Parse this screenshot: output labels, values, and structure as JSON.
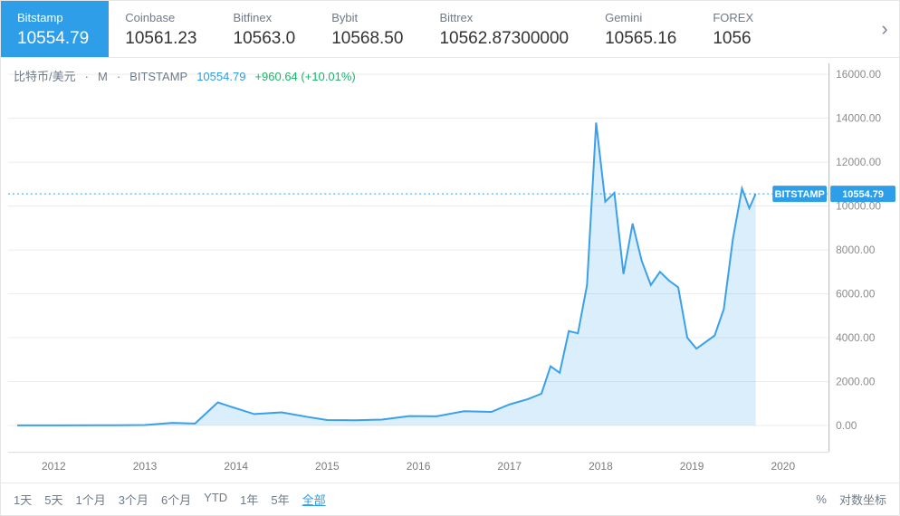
{
  "tabs": {
    "items": [
      {
        "name": "Bitstamp",
        "value": "10554.79",
        "active": true
      },
      {
        "name": "Coinbase",
        "value": "10561.23",
        "active": false
      },
      {
        "name": "Bitfinex",
        "value": "10563.0",
        "active": false
      },
      {
        "name": "Bybit",
        "value": "10568.50",
        "active": false
      },
      {
        "name": "Bittrex",
        "value": "10562.87300000",
        "active": false
      },
      {
        "name": "Gemini",
        "value": "10565.16",
        "active": false
      },
      {
        "name": "FOREX",
        "value": "1056",
        "active": false,
        "cut": true
      }
    ],
    "next_glyph": "›"
  },
  "legend": {
    "pair": "比特币/美元",
    "interval": "M",
    "source": "BITSTAMP",
    "price": "10554.79",
    "change": "+960.64 (+10.01%)"
  },
  "chart": {
    "type": "area",
    "line_color": "#3aa0ea",
    "area_color": "#3aa0ea",
    "background": "#ffffff",
    "grid_color": "#ececec",
    "axis_color": "#b8b8b8",
    "ref_line_color": "#2e9ee8",
    "xlim": [
      2011.5,
      2020.5
    ],
    "ylim": [
      -1200,
      16500
    ],
    "yticks": [
      0,
      2000,
      4000,
      6000,
      8000,
      10000,
      12000,
      14000,
      16000
    ],
    "ytick_labels": [
      "0.00",
      "2000.00",
      "4000.00",
      "6000.00",
      "8000.00",
      "10000.00",
      "12000.00",
      "14000.00",
      "16000.00"
    ],
    "xticks": [
      2012,
      2013,
      2014,
      2015,
      2016,
      2017,
      2018,
      2019,
      2020
    ],
    "xtick_labels": [
      "2012",
      "2013",
      "2014",
      "2015",
      "2016",
      "2017",
      "2018",
      "2019",
      "2020"
    ],
    "reference_y": 10554.79,
    "price_tag": {
      "source": "BITSTAMP",
      "value": "10554.79",
      "bg": "#2e9ee8"
    },
    "series": [
      {
        "x": 2011.6,
        "y": 5
      },
      {
        "x": 2012.0,
        "y": 6
      },
      {
        "x": 2012.5,
        "y": 10
      },
      {
        "x": 2013.0,
        "y": 20
      },
      {
        "x": 2013.3,
        "y": 120
      },
      {
        "x": 2013.55,
        "y": 90
      },
      {
        "x": 2013.8,
        "y": 1050
      },
      {
        "x": 2014.0,
        "y": 780
      },
      {
        "x": 2014.2,
        "y": 520
      },
      {
        "x": 2014.5,
        "y": 600
      },
      {
        "x": 2014.8,
        "y": 380
      },
      {
        "x": 2015.0,
        "y": 250
      },
      {
        "x": 2015.3,
        "y": 240
      },
      {
        "x": 2015.6,
        "y": 270
      },
      {
        "x": 2015.9,
        "y": 430
      },
      {
        "x": 2016.2,
        "y": 420
      },
      {
        "x": 2016.5,
        "y": 650
      },
      {
        "x": 2016.8,
        "y": 620
      },
      {
        "x": 2017.0,
        "y": 960
      },
      {
        "x": 2017.2,
        "y": 1200
      },
      {
        "x": 2017.35,
        "y": 1450
      },
      {
        "x": 2017.45,
        "y": 2700
      },
      {
        "x": 2017.55,
        "y": 2400
      },
      {
        "x": 2017.65,
        "y": 4300
      },
      {
        "x": 2017.75,
        "y": 4200
      },
      {
        "x": 2017.85,
        "y": 6400
      },
      {
        "x": 2017.95,
        "y": 13800
      },
      {
        "x": 2018.05,
        "y": 10200
      },
      {
        "x": 2018.15,
        "y": 10600
      },
      {
        "x": 2018.25,
        "y": 6900
      },
      {
        "x": 2018.35,
        "y": 9200
      },
      {
        "x": 2018.45,
        "y": 7500
      },
      {
        "x": 2018.55,
        "y": 6400
      },
      {
        "x": 2018.65,
        "y": 7000
      },
      {
        "x": 2018.75,
        "y": 6600
      },
      {
        "x": 2018.85,
        "y": 6300
      },
      {
        "x": 2018.95,
        "y": 4000
      },
      {
        "x": 2019.05,
        "y": 3500
      },
      {
        "x": 2019.15,
        "y": 3800
      },
      {
        "x": 2019.25,
        "y": 4100
      },
      {
        "x": 2019.35,
        "y": 5300
      },
      {
        "x": 2019.45,
        "y": 8500
      },
      {
        "x": 2019.55,
        "y": 10800
      },
      {
        "x": 2019.63,
        "y": 9900
      },
      {
        "x": 2019.7,
        "y": 10554.79
      }
    ]
  },
  "toolbar": {
    "ranges": [
      {
        "label": "1天",
        "selected": false
      },
      {
        "label": "5天",
        "selected": false
      },
      {
        "label": "1个月",
        "selected": false
      },
      {
        "label": "3个月",
        "selected": false
      },
      {
        "label": "6个月",
        "selected": false
      },
      {
        "label": "YTD",
        "selected": false
      },
      {
        "label": "1年",
        "selected": false
      },
      {
        "label": "5年",
        "selected": false
      },
      {
        "label": "全部",
        "selected": true
      }
    ],
    "pct_glyph": "%",
    "log_label": "对数坐标"
  }
}
